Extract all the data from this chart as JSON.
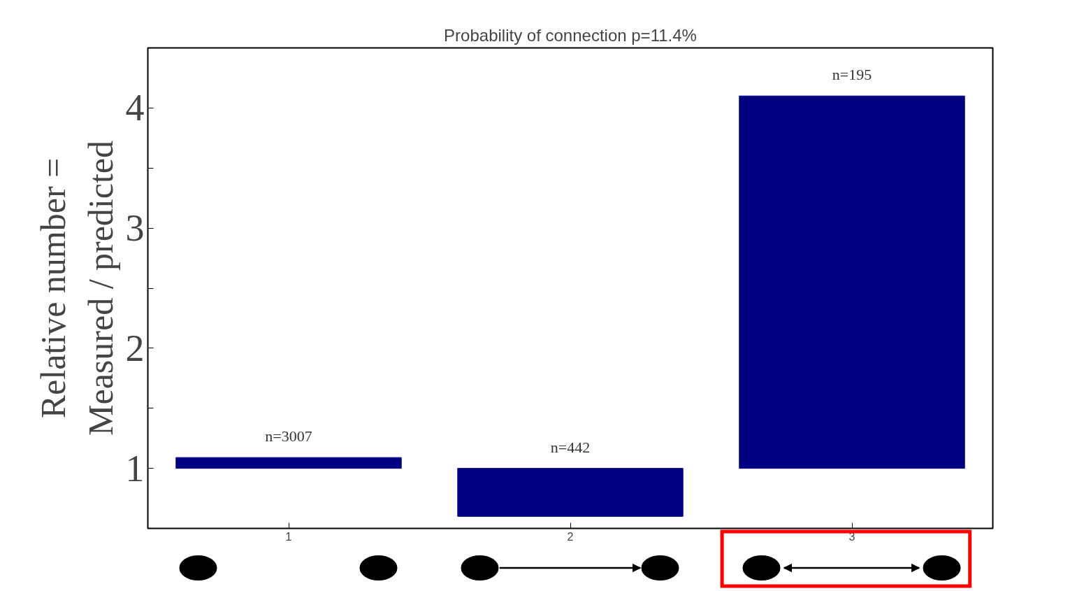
{
  "chart_data": {
    "type": "bar",
    "title": "Probability of connection p=11.4%",
    "ylabel": "Relative number =\nMeasured / predicted",
    "categories": [
      "1",
      "2",
      "3"
    ],
    "base": [
      1,
      1,
      1
    ],
    "values": [
      0.09,
      -0.4,
      3.1
    ],
    "annotations": [
      {
        "text": "n=3007",
        "x": "1",
        "y": 1.09
      },
      {
        "text": "n=442",
        "x": "2",
        "y": 1
      },
      {
        "text": "n=195",
        "x": "3",
        "y": 4.1
      }
    ],
    "color": "#000080",
    "ylim": [
      0.5,
      4.5
    ],
    "yticks": [
      1,
      {
        "value": 1.5,
        "label": null
      },
      2,
      {
        "value": 2.5,
        "label": null
      },
      3,
      {
        "value": 3.5,
        "label": null
      },
      4
    ],
    "grid": false
  }
}
